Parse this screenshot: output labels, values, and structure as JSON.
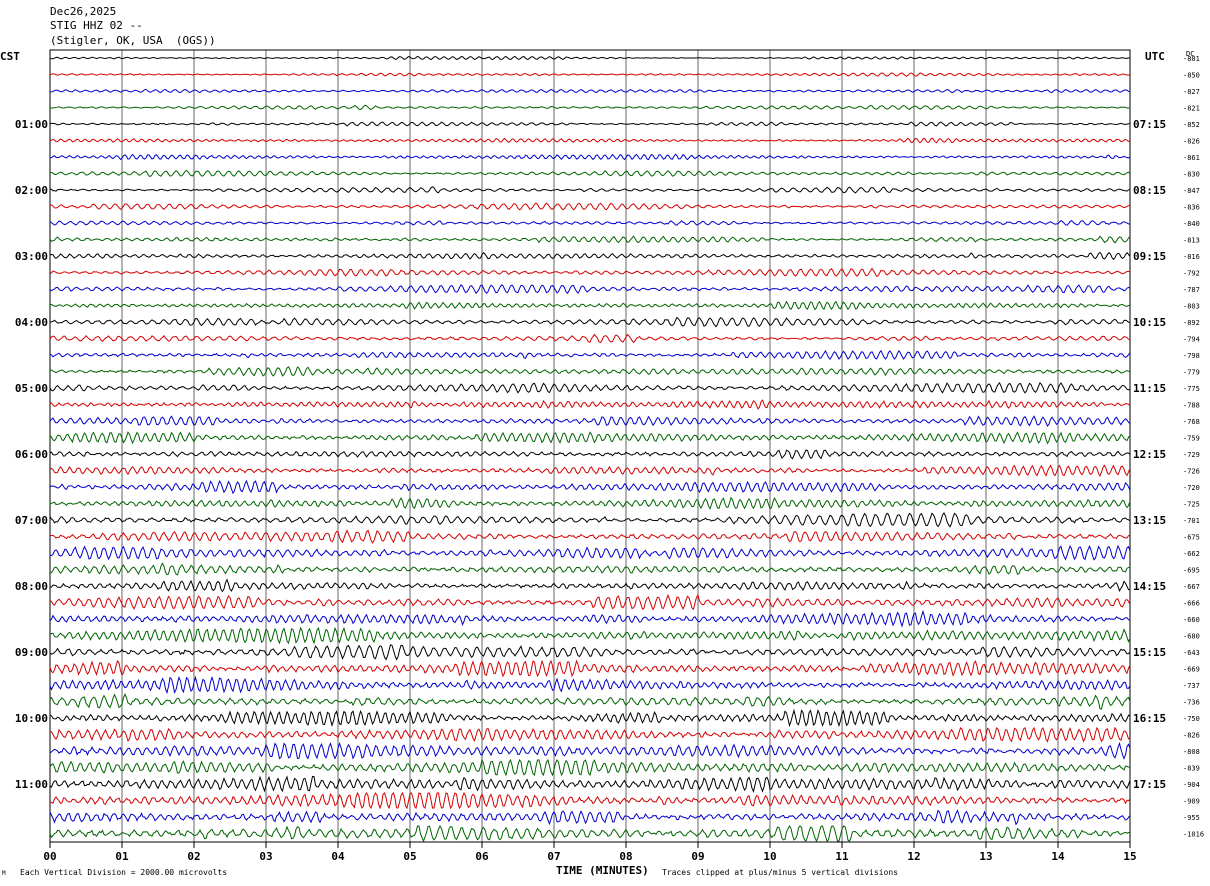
{
  "header": {
    "date": "Dec26,2025",
    "station": "STIG HHZ 02 --",
    "location": "(Stigler, OK, USA  (OGS))"
  },
  "timezone_left": "CST",
  "timezone_right": "UTC",
  "dc_label": "DC",
  "footer": {
    "vertical_division": "Each Vertical Division = 2000.00 microvolts",
    "clipping": "Traces clipped at plus/minus 5 vertical divisions",
    "corner_mark": "M"
  },
  "chart_data": {
    "type": "line",
    "xlabel": "TIME (MINUTES)",
    "x_ticks": [
      "00",
      "01",
      "02",
      "03",
      "04",
      "05",
      "06",
      "07",
      "08",
      "09",
      "10",
      "11",
      "12",
      "13",
      "14",
      "15"
    ],
    "xlim": [
      0,
      15
    ],
    "grid": true,
    "trace_colors": [
      "#000000",
      "#d40000",
      "#0000cc",
      "#006400"
    ],
    "left_time_labels": [
      {
        "row": 4,
        "label": "01:00"
      },
      {
        "row": 8,
        "label": "02:00"
      },
      {
        "row": 12,
        "label": "03:00"
      },
      {
        "row": 16,
        "label": "04:00"
      },
      {
        "row": 20,
        "label": "05:00"
      },
      {
        "row": 24,
        "label": "06:00"
      },
      {
        "row": 28,
        "label": "07:00"
      },
      {
        "row": 32,
        "label": "08:00"
      },
      {
        "row": 36,
        "label": "09:00"
      },
      {
        "row": 40,
        "label": "10:00"
      },
      {
        "row": 44,
        "label": "11:00"
      }
    ],
    "right_time_labels": [
      {
        "row": 4,
        "label": "07:15"
      },
      {
        "row": 8,
        "label": "08:15"
      },
      {
        "row": 12,
        "label": "09:15"
      },
      {
        "row": 16,
        "label": "10:15"
      },
      {
        "row": 20,
        "label": "11:15"
      },
      {
        "row": 24,
        "label": "12:15"
      },
      {
        "row": 28,
        "label": "13:15"
      },
      {
        "row": 32,
        "label": "14:15"
      },
      {
        "row": 36,
        "label": "15:15"
      },
      {
        "row": 40,
        "label": "16:15"
      },
      {
        "row": 44,
        "label": "17:15"
      }
    ],
    "dc_offsets": [
      "-801",
      "-850",
      "-827",
      "-821",
      "-852",
      "-826",
      "-861",
      "-830",
      "-847",
      "-836",
      "-840",
      "-813",
      "-816",
      "-792",
      "-787",
      "-803",
      "-892",
      "-794",
      "-798",
      "-779",
      "-775",
      "-788",
      "-768",
      "-759",
      "-729",
      "-726",
      "-720",
      "-725",
      "-701",
      "-675",
      "-662",
      "-695",
      "-667",
      "-666",
      "-660",
      "-680",
      "-643",
      "-669",
      "-737",
      "-736",
      "-750",
      "-826",
      "-808",
      "-839",
      "-904",
      "-909",
      "-955",
      "-1016"
    ],
    "amplitude_trend": "low at start, increasing toward later rows"
  }
}
